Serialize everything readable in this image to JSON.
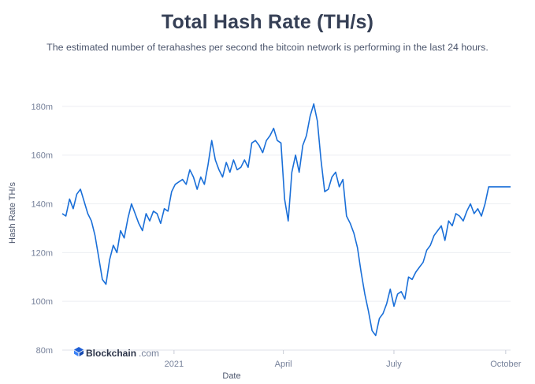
{
  "header": {
    "title": "Total Hash Rate (TH/s)",
    "subtitle": "The estimated number of terahashes per second the bitcoin network is performing in the last 24 hours."
  },
  "brand": {
    "name": "Blockchain",
    "suffix": ".com",
    "icon": "blockchain-logo-icon",
    "color": "#1f5fd6"
  },
  "chart_data": {
    "type": "line",
    "title": "Total Hash Rate (TH/s)",
    "subtitle": "The estimated number of terahashes per second the bitcoin network is performing in the last 24 hours.",
    "xlabel": "Date",
    "ylabel": "Hash Rate TH/s",
    "x_ticks": [
      "2021",
      "April",
      "July",
      "October"
    ],
    "y_ticks": [
      "80m",
      "100m",
      "120m",
      "140m",
      "160m",
      "180m"
    ],
    "ylim": [
      80,
      190
    ],
    "xlim": [
      "2020-10-01",
      "2021-10-05"
    ],
    "grid": true,
    "line_color": "#1a6fd8",
    "series": [
      {
        "x": [
          "2020-10-01",
          "2020-10-04",
          "2020-10-07",
          "2020-10-10",
          "2020-10-13",
          "2020-10-16",
          "2020-10-19",
          "2020-10-22",
          "2020-10-25",
          "2020-10-28",
          "2020-10-31",
          "2020-11-03",
          "2020-11-06",
          "2020-11-09",
          "2020-11-12",
          "2020-11-15",
          "2020-11-18",
          "2020-11-21",
          "2020-11-24",
          "2020-11-27",
          "2020-11-30",
          "2020-12-03",
          "2020-12-06",
          "2020-12-09",
          "2020-12-12",
          "2020-12-15",
          "2020-12-18",
          "2020-12-21",
          "2020-12-24",
          "2020-12-27",
          "2020-12-30",
          "2021-01-02",
          "2021-01-05",
          "2021-01-08",
          "2021-01-11",
          "2021-01-14",
          "2021-01-17",
          "2021-01-20",
          "2021-01-23",
          "2021-01-26",
          "2021-01-29",
          "2021-02-01",
          "2021-02-04",
          "2021-02-07",
          "2021-02-10",
          "2021-02-13",
          "2021-02-16",
          "2021-02-19",
          "2021-02-22",
          "2021-02-25",
          "2021-02-28",
          "2021-03-03",
          "2021-03-06",
          "2021-03-09",
          "2021-03-12",
          "2021-03-15",
          "2021-03-18",
          "2021-03-21",
          "2021-03-24",
          "2021-03-27",
          "2021-03-30",
          "2021-04-02",
          "2021-04-05",
          "2021-04-08",
          "2021-04-11",
          "2021-04-14",
          "2021-04-17",
          "2021-04-20",
          "2021-04-23",
          "2021-04-26",
          "2021-04-29",
          "2021-05-02",
          "2021-05-05",
          "2021-05-08",
          "2021-05-11",
          "2021-05-14",
          "2021-05-17",
          "2021-05-20",
          "2021-05-23",
          "2021-05-26",
          "2021-05-29",
          "2021-06-01",
          "2021-06-04",
          "2021-06-07",
          "2021-06-10",
          "2021-06-13",
          "2021-06-16",
          "2021-06-19",
          "2021-06-22",
          "2021-06-25",
          "2021-06-28",
          "2021-07-01",
          "2021-07-04",
          "2021-07-07",
          "2021-07-10",
          "2021-07-13",
          "2021-07-16",
          "2021-07-19",
          "2021-07-22",
          "2021-07-25",
          "2021-07-28",
          "2021-07-31",
          "2021-08-03",
          "2021-08-06",
          "2021-08-09",
          "2021-08-12",
          "2021-08-15",
          "2021-08-18",
          "2021-08-21",
          "2021-08-24",
          "2021-08-27",
          "2021-08-30",
          "2021-09-02",
          "2021-09-05",
          "2021-09-08",
          "2021-09-11",
          "2021-09-14",
          "2021-09-17",
          "2021-09-20",
          "2021-09-23",
          "2021-09-26",
          "2021-09-29",
          "2021-10-02",
          "2021-10-05"
        ],
        "values": [
          136,
          135,
          142,
          138,
          144,
          146,
          141,
          136,
          133,
          127,
          118,
          109,
          107,
          117,
          123,
          120,
          129,
          126,
          134,
          140,
          136,
          132,
          129,
          136,
          133,
          137,
          136,
          132,
          138,
          137,
          145,
          148,
          149,
          150,
          148,
          154,
          151,
          146,
          151,
          148,
          156,
          166,
          158,
          154,
          151,
          157,
          153,
          158,
          154,
          155,
          158,
          155,
          165,
          166,
          164,
          161,
          166,
          168,
          171,
          166,
          165,
          142,
          133,
          153,
          160,
          153,
          164,
          168,
          176,
          181,
          174,
          158,
          145,
          146,
          151,
          153,
          147,
          150,
          135,
          132,
          128,
          122,
          112,
          103,
          96,
          88,
          86,
          93,
          95,
          99,
          105,
          98,
          103,
          104,
          101,
          110,
          109,
          112,
          114,
          116,
          121,
          123,
          127,
          129,
          131,
          125,
          133,
          131,
          136,
          135,
          133,
          137,
          140,
          136,
          138,
          135,
          140,
          147,
          147,
          147,
          147,
          147,
          147,
          147
        ],
        "note_values_unit": "m TH/s"
      }
    ]
  },
  "axis_titles": {
    "x": "Date",
    "y": "Hash Rate TH/s"
  }
}
